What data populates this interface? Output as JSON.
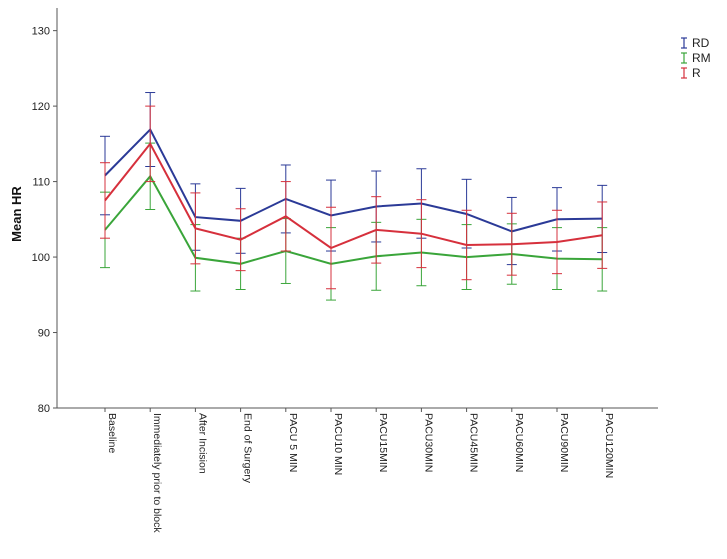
{
  "chart_data": {
    "type": "line",
    "ylabel": "Mean HR",
    "xlabel": "",
    "ylim": [
      80,
      133
    ],
    "yticks": [
      80,
      90,
      100,
      110,
      120,
      130
    ],
    "grid": false,
    "legend_position": "top-right",
    "categories": [
      "Baseline",
      "Immediately prior to block",
      "After Incision",
      "End of Surgery",
      "PACU 5 MIN",
      "PACU10 MIN",
      "PACU15MIN",
      "PACU30MIN",
      "PACU45MIN",
      "PACU60MIN",
      "PACU90MIN",
      "PACU120MIN"
    ],
    "series": [
      {
        "name": "RD",
        "color": "#2b3a97",
        "values": [
          110.8,
          116.9,
          105.3,
          104.8,
          107.7,
          105.5,
          106.7,
          107.1,
          105.7,
          103.4,
          105.0,
          105.1
        ],
        "lower": [
          105.6,
          112.0,
          100.9,
          100.5,
          103.2,
          100.8,
          102.0,
          102.5,
          101.2,
          99.0,
          100.8,
          100.6
        ],
        "upper": [
          116.0,
          121.8,
          109.7,
          109.1,
          112.2,
          110.2,
          111.4,
          111.7,
          110.3,
          107.9,
          109.2,
          109.5
        ]
      },
      {
        "name": "RM",
        "color": "#3aa53a",
        "values": [
          103.6,
          110.7,
          99.9,
          99.1,
          100.8,
          99.1,
          100.1,
          100.6,
          100.0,
          100.4,
          99.8,
          99.7
        ],
        "lower": [
          98.6,
          106.3,
          95.5,
          95.7,
          96.5,
          94.3,
          95.6,
          96.2,
          95.7,
          96.4,
          95.7,
          95.5
        ],
        "upper": [
          108.6,
          115.1,
          104.3,
          102.5,
          105.1,
          103.9,
          104.6,
          105.0,
          104.3,
          104.4,
          103.9,
          103.9
        ]
      },
      {
        "name": "R",
        "color": "#d6303c",
        "values": [
          107.5,
          115.0,
          103.8,
          102.3,
          105.4,
          101.2,
          103.6,
          103.1,
          101.6,
          101.7,
          102.0,
          102.9
        ],
        "lower": [
          102.5,
          110.0,
          99.1,
          98.2,
          100.8,
          95.8,
          99.2,
          98.6,
          97.0,
          97.6,
          97.8,
          98.5
        ],
        "upper": [
          112.5,
          120.0,
          108.5,
          106.4,
          110.0,
          106.6,
          108.0,
          107.6,
          106.2,
          105.8,
          106.2,
          107.3
        ]
      }
    ]
  }
}
